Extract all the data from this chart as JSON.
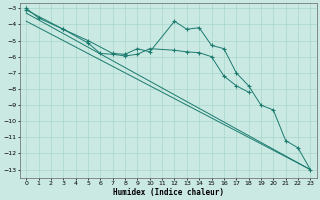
{
  "xlabel": "Humidex (Indice chaleur)",
  "xlim": [
    -0.5,
    23.5
  ],
  "ylim": [
    -13.5,
    -2.7
  ],
  "xticks": [
    0,
    1,
    2,
    3,
    4,
    5,
    6,
    7,
    8,
    9,
    10,
    11,
    12,
    13,
    14,
    15,
    16,
    17,
    18,
    19,
    20,
    21,
    22,
    23
  ],
  "yticks": [
    -3,
    -4,
    -5,
    -6,
    -7,
    -8,
    -9,
    -10,
    -11,
    -12,
    -13
  ],
  "bg_color": "#cbe9e3",
  "grid_color": "#a8d5cc",
  "line_color": "#1a7a6e",
  "line1_x": [
    0,
    1,
    3,
    5,
    7,
    8,
    9,
    10,
    12,
    13,
    14,
    15,
    16,
    17,
    18,
    19,
    20,
    21,
    22,
    23
  ],
  "line1_y": [
    -3.0,
    -3.6,
    -4.3,
    -5.0,
    -5.8,
    -5.85,
    -5.5,
    -5.7,
    -3.8,
    -4.3,
    -4.2,
    -5.3,
    -5.5,
    -7.0,
    -7.8,
    -9.0,
    -9.3,
    -11.2,
    -11.65,
    -13.0
  ],
  "line2_x": [
    0,
    3,
    5,
    6,
    7,
    8,
    9,
    10,
    12,
    13,
    14,
    15,
    16,
    17,
    18
  ],
  "line2_y": [
    -3.1,
    -4.3,
    -5.15,
    -5.8,
    -5.85,
    -5.95,
    -5.85,
    -5.5,
    -5.6,
    -5.7,
    -5.75,
    -6.0,
    -7.2,
    -7.8,
    -8.2
  ],
  "line3_x": [
    0,
    23
  ],
  "line3_y": [
    -3.3,
    -13.0
  ],
  "line4_x": [
    0,
    23
  ],
  "line4_y": [
    -3.8,
    -13.0
  ]
}
